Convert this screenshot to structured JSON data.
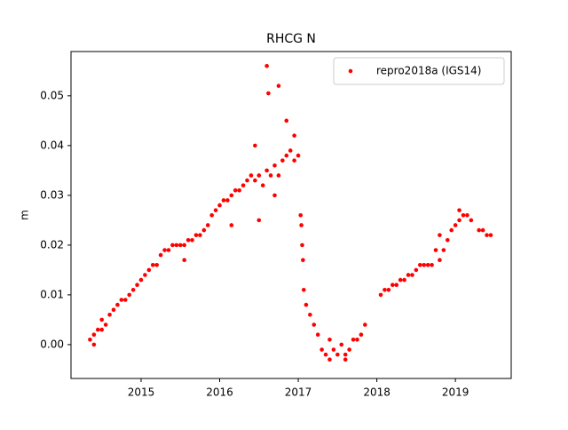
{
  "chart_data": {
    "type": "scatter",
    "title": "RHCG N",
    "y_label": "m",
    "xlim": [
      2014.108,
      2019.71
    ],
    "ylim": [
      -0.0068,
      0.0589
    ],
    "xticks": [
      2015,
      2016,
      2017,
      2018,
      2019
    ],
    "yticks": [
      {
        "value": 0,
        "label": "0.00"
      },
      {
        "value": 0.01,
        "label": "0.01"
      },
      {
        "value": 0.02,
        "label": "0.02"
      },
      {
        "value": 0.03,
        "label": "0.03"
      },
      {
        "value": 0.04,
        "label": "0.04"
      },
      {
        "value": 0.05,
        "label": "0.05"
      }
    ],
    "legend_loc": "upper right",
    "series": [
      {
        "name": "repro2018a (IGS14)",
        "color": "#ff0000",
        "x": [
          2014.35,
          2014.4,
          2014.45,
          2014.5,
          2014.55,
          2014.6,
          2014.65,
          2014.7,
          2014.75,
          2014.8,
          2014.85,
          2014.9,
          2014.95,
          2015.0,
          2015.05,
          2015.1,
          2015.15,
          2015.2,
          2015.25,
          2015.3,
          2015.35,
          2015.4,
          2015.45,
          2015.5,
          2015.55,
          2015.6,
          2015.65,
          2015.7,
          2015.75,
          2015.8,
          2015.85,
          2015.9,
          2015.95,
          2016.0,
          2016.05,
          2016.1,
          2016.15,
          2016.2,
          2016.25,
          2016.3,
          2016.35,
          2016.4,
          2016.45,
          2016.5,
          2016.55,
          2016.6,
          2016.65,
          2016.7,
          2016.75,
          2016.8,
          2016.85,
          2016.9,
          2016.95,
          2017.0,
          2014.4,
          2014.5,
          2015.55,
          2016.45,
          2016.7,
          2016.95,
          2016.6,
          2016.62,
          2016.75,
          2016.85,
          2016.15,
          2016.5,
          2017.03,
          2017.04,
          2017.05,
          2017.06,
          2017.07,
          2017.1,
          2017.15,
          2017.2,
          2017.25,
          2017.3,
          2017.35,
          2017.4,
          2017.45,
          2017.5,
          2017.55,
          2017.6,
          2017.65,
          2017.7,
          2017.75,
          2017.8,
          2017.85,
          2017.4,
          2017.6,
          2018.05,
          2018.1,
          2018.15,
          2018.2,
          2018.25,
          2018.3,
          2018.35,
          2018.4,
          2018.45,
          2018.5,
          2018.55,
          2018.6,
          2018.65,
          2018.7,
          2018.75,
          2018.8,
          2018.85,
          2018.9,
          2018.95,
          2019.0,
          2019.05,
          2019.1,
          2019.15,
          2019.2,
          2019.3,
          2019.35,
          2019.4,
          2019.45,
          2018.8,
          2019.05
        ],
        "values": [
          0.001,
          0.002,
          0.003,
          0.003,
          0.004,
          0.006,
          0.007,
          0.008,
          0.009,
          0.009,
          0.01,
          0.011,
          0.012,
          0.013,
          0.014,
          0.015,
          0.016,
          0.016,
          0.018,
          0.019,
          0.019,
          0.02,
          0.02,
          0.02,
          0.02,
          0.021,
          0.021,
          0.022,
          0.022,
          0.023,
          0.024,
          0.026,
          0.027,
          0.028,
          0.029,
          0.029,
          0.03,
          0.031,
          0.031,
          0.032,
          0.033,
          0.034,
          0.033,
          0.034,
          0.032,
          0.035,
          0.034,
          0.036,
          0.034,
          0.037,
          0.038,
          0.039,
          0.037,
          0.038,
          0.0,
          0.005,
          0.017,
          0.04,
          0.03,
          0.042,
          0.056,
          0.0505,
          0.052,
          0.045,
          0.024,
          0.025,
          0.026,
          0.024,
          0.02,
          0.017,
          0.011,
          0.008,
          0.006,
          0.004,
          0.002,
          -0.001,
          -0.002,
          -0.003,
          -0.001,
          -0.002,
          0.0,
          -0.002,
          -0.001,
          0.001,
          0.001,
          0.002,
          0.004,
          0.001,
          -0.003,
          0.01,
          0.011,
          0.011,
          0.012,
          0.012,
          0.013,
          0.013,
          0.014,
          0.014,
          0.015,
          0.016,
          0.016,
          0.016,
          0.016,
          0.019,
          0.017,
          0.019,
          0.021,
          0.023,
          0.024,
          0.025,
          0.026,
          0.026,
          0.025,
          0.023,
          0.023,
          0.022,
          0.022,
          0.022,
          0.027
        ]
      }
    ]
  }
}
